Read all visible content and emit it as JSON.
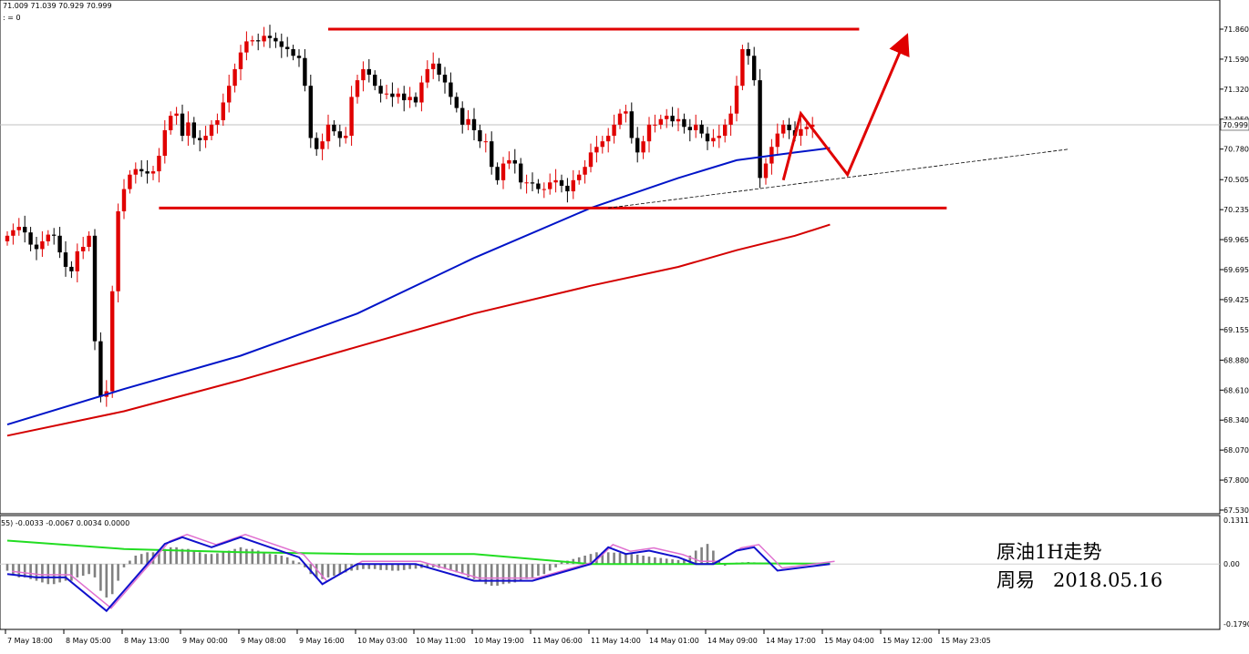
{
  "header": {
    "ohlc": "71.009 71.039 70.929 70.999",
    "line2": ": = 0",
    "macd": "55) -0.0033 -0.0067 0.0034 0.0000"
  },
  "annotation": {
    "line1": "原油1H走势",
    "line2": "周易   2018.05.16"
  },
  "price_badge": "70.999",
  "colors": {
    "bull": "#e00000",
    "bear": "#000000",
    "ma_fast": "#0014c8",
    "ma_slow": "#d40000",
    "drawing": "#e00000",
    "macd_hist": "#808080",
    "macd_signal": "#22dd22",
    "macd_line": "#1010cc",
    "macd_line2": "#e070d0"
  },
  "chart_data": [
    {
      "type": "candlestick",
      "panel": "price",
      "title": "",
      "x_labels": [
        "7 May 18:00",
        "8 May 05:00",
        "8 May 13:00",
        "9 May 00:00",
        "9 May 08:00",
        "9 May 16:00",
        "10 May 03:00",
        "10 May 11:00",
        "10 May 19:00",
        "11 May 06:00",
        "11 May 14:00",
        "14 May 01:00",
        "14 May 09:00",
        "14 May 17:00",
        "15 May 04:00",
        "15 May 12:00",
        "15 May 23:05"
      ],
      "y_ticks": [
        "71.860",
        "71.590",
        "71.320",
        "71.050",
        "70.780",
        "70.505",
        "70.235",
        "69.965",
        "69.695",
        "69.425",
        "69.155",
        "68.880",
        "68.610",
        "68.340",
        "68.070",
        "67.800",
        "67.530"
      ],
      "ylim": [
        67.53,
        71.86
      ],
      "current_price": 70.999,
      "closes": [
        70.0,
        70.05,
        70.08,
        70.03,
        69.92,
        69.88,
        69.95,
        70.01,
        70.0,
        69.85,
        69.72,
        69.68,
        69.86,
        69.9,
        70.0,
        69.05,
        68.55,
        68.6,
        69.5,
        70.22,
        70.42,
        70.55,
        70.6,
        70.58,
        70.56,
        70.58,
        70.72,
        70.95,
        71.08,
        71.1,
        70.9,
        71.02,
        70.88,
        70.86,
        70.9,
        71.0,
        71.04,
        71.2,
        71.35,
        71.5,
        71.65,
        71.75,
        71.76,
        71.75,
        71.8,
        71.78,
        71.75,
        71.7,
        71.68,
        71.62,
        71.6,
        71.35,
        70.88,
        70.78,
        70.85,
        71.0,
        70.94,
        70.88,
        70.9,
        71.25,
        71.4,
        71.5,
        71.45,
        71.35,
        71.28,
        71.28,
        71.25,
        71.28,
        71.22,
        71.25,
        71.2,
        71.38,
        71.5,
        71.55,
        71.45,
        71.38,
        71.25,
        71.15,
        71.0,
        71.05,
        70.95,
        70.85,
        70.85,
        70.62,
        70.5,
        70.65,
        70.68,
        70.65,
        70.48,
        70.48,
        70.47,
        70.42,
        70.42,
        70.48,
        70.5,
        70.45,
        70.4,
        70.5,
        70.55,
        70.62,
        70.75,
        70.8,
        70.85,
        70.9,
        71.0,
        71.1,
        71.12,
        70.88,
        70.75,
        70.85,
        71.0,
        71.0,
        71.05,
        71.08,
        71.03,
        71.05,
        70.98,
        70.95,
        71.0,
        70.92,
        70.85,
        70.88,
        70.9,
        71.0,
        71.1,
        71.35,
        71.68,
        71.62,
        71.4,
        70.52,
        70.65,
        70.8,
        70.92,
        71.0,
        70.95,
        70.9,
        70.96,
        70.98,
        71.0
      ],
      "series": [
        {
          "name": "",
          "kind": "moving_average",
          "color": "#0014c8",
          "x": [
            0,
            20,
            40,
            60,
            80,
            100,
            115,
            125,
            135,
            141
          ],
          "y": [
            68.3,
            68.62,
            68.92,
            69.3,
            69.8,
            70.25,
            70.52,
            70.68,
            70.75,
            70.79
          ]
        },
        {
          "name": "",
          "kind": "moving_average",
          "color": "#d40000",
          "x": [
            0,
            20,
            40,
            60,
            80,
            100,
            115,
            125,
            135,
            141
          ],
          "y": [
            68.2,
            68.42,
            68.7,
            69.0,
            69.3,
            69.55,
            69.72,
            69.87,
            70.0,
            70.1
          ]
        }
      ],
      "drawings": [
        {
          "kind": "horizontal_line",
          "from_bar": 55,
          "to_bar": 146,
          "y": 71.86
        },
        {
          "kind": "horizontal_line",
          "from_bar": 26,
          "to_bar": 161,
          "y": 70.25
        },
        {
          "kind": "trend_line",
          "style": "dashed",
          "from": [
            103,
            70.25
          ],
          "to": [
            182,
            70.78
          ]
        },
        {
          "kind": "forecast_path",
          "points": [
            [
              133,
              70.5
            ],
            [
              136,
              71.1
            ],
            [
              144,
              70.55
            ],
            [
              154,
              71.78
            ]
          ],
          "arrow": true
        }
      ]
    },
    {
      "type": "macd",
      "panel": "oscillator",
      "title": "",
      "y_ticks": [
        "0.1311",
        "0.00",
        "-0.1790"
      ],
      "ylim": [
        -0.179,
        0.1311
      ],
      "histogram": [
        -0.02,
        -0.03,
        -0.04,
        -0.04,
        -0.045,
        -0.05,
        -0.055,
        -0.06,
        -0.06,
        -0.055,
        -0.05,
        -0.05,
        -0.04,
        -0.035,
        -0.03,
        -0.04,
        -0.08,
        -0.1,
        -0.09,
        -0.05,
        -0.01,
        0.01,
        0.025,
        0.03,
        0.035,
        0.035,
        0.04,
        0.045,
        0.05,
        0.05,
        0.045,
        0.045,
        0.04,
        0.035,
        0.03,
        0.03,
        0.032,
        0.035,
        0.04,
        0.045,
        0.05,
        0.045,
        0.045,
        0.04,
        0.035,
        0.03,
        0.028,
        0.025,
        0.02,
        0.01,
        0.005,
        -0.01,
        -0.03,
        -0.04,
        -0.045,
        -0.04,
        -0.035,
        -0.03,
        -0.025,
        -0.02,
        -0.018,
        -0.015,
        -0.015,
        -0.015,
        -0.018,
        -0.018,
        -0.02,
        -0.02,
        -0.018,
        -0.015,
        -0.014,
        -0.012,
        -0.01,
        -0.01,
        -0.012,
        -0.015,
        -0.02,
        -0.025,
        -0.03,
        -0.04,
        -0.045,
        -0.05,
        -0.06,
        -0.065,
        -0.065,
        -0.06,
        -0.058,
        -0.055,
        -0.05,
        -0.045,
        -0.04,
        -0.035,
        -0.03,
        -0.02,
        -0.01,
        0.005,
        0.01,
        0.015,
        0.02,
        0.025,
        0.03,
        0.035,
        0.035,
        0.035,
        0.034,
        0.033,
        0.032,
        0.03,
        0.028,
        0.025,
        0.022,
        0.02,
        0.018,
        0.016,
        0.014,
        0.012,
        0.015,
        0.025,
        0.04,
        0.05,
        0.06,
        0.04,
        0.01,
        -0.005,
        0.0,
        0.004,
        0.005,
        0.006,
        0.005,
        0.004,
        0.004,
        0.003,
        0.003
      ],
      "series": [
        {
          "name": "",
          "kind": "signal",
          "color": "#22dd22",
          "x": [
            0,
            20,
            40,
            60,
            80,
            100,
            120,
            127,
            141
          ],
          "y": [
            0.07,
            0.045,
            0.035,
            0.03,
            0.03,
            0.0,
            0.0,
            0.002,
            0.001
          ]
        },
        {
          "name": "",
          "kind": "macd",
          "color": "#1010cc",
          "x": [
            0,
            5,
            10,
            17,
            20,
            24,
            27,
            30,
            35,
            40,
            50,
            54,
            60,
            70,
            80,
            90,
            100,
            103,
            106,
            110,
            115,
            118,
            121,
            125,
            128,
            132,
            141
          ],
          "y": [
            -0.03,
            -0.04,
            -0.04,
            -0.14,
            -0.08,
            0.0,
            0.06,
            0.08,
            0.05,
            0.08,
            0.02,
            -0.06,
            0.0,
            0.0,
            -0.05,
            -0.05,
            0.0,
            0.05,
            0.03,
            0.04,
            0.02,
            0.0,
            0.0,
            0.04,
            0.05,
            -0.02,
            0.0
          ]
        }
      ]
    }
  ]
}
